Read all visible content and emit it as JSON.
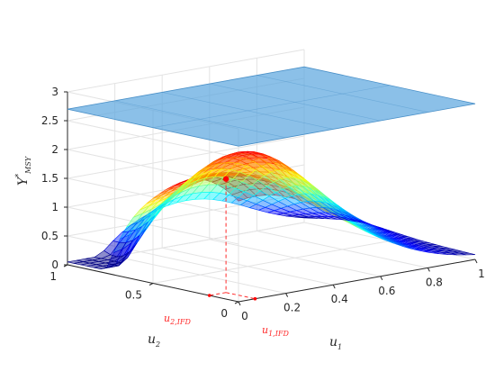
{
  "chart_data": {
    "type": "surface",
    "title": "",
    "zlabel": {
      "base": "Y",
      "sup": "*",
      "sub": "MSY"
    },
    "xlabel": {
      "base": "u",
      "sub": "1"
    },
    "ylabel": {
      "base": "u",
      "sub": "2"
    },
    "xlim": [
      0,
      1
    ],
    "ylim": [
      0,
      1
    ],
    "zlim": [
      0,
      3
    ],
    "x_ticks": [
      "0",
      "0.2",
      "0.4",
      "0.6",
      "0.8",
      "1"
    ],
    "y_ticks": [
      "0",
      "0.5",
      "1"
    ],
    "z_ticks": [
      "0",
      "0.5",
      "1",
      "1.5",
      "2",
      "2.5",
      "3"
    ],
    "grid": true,
    "colormap": "jet",
    "plane": {
      "z": 2.7,
      "color": "#5aa5de",
      "opacity": 0.7
    },
    "optimum": {
      "u1": 0.07,
      "u2": 0.17,
      "value": 1.97,
      "color": "#ff0000"
    },
    "annotations": [
      {
        "base": "u",
        "sub": "1,IFD",
        "u1": 0.07
      },
      {
        "base": "u",
        "sub": "2,IFD",
        "u2": 0.17
      }
    ]
  }
}
